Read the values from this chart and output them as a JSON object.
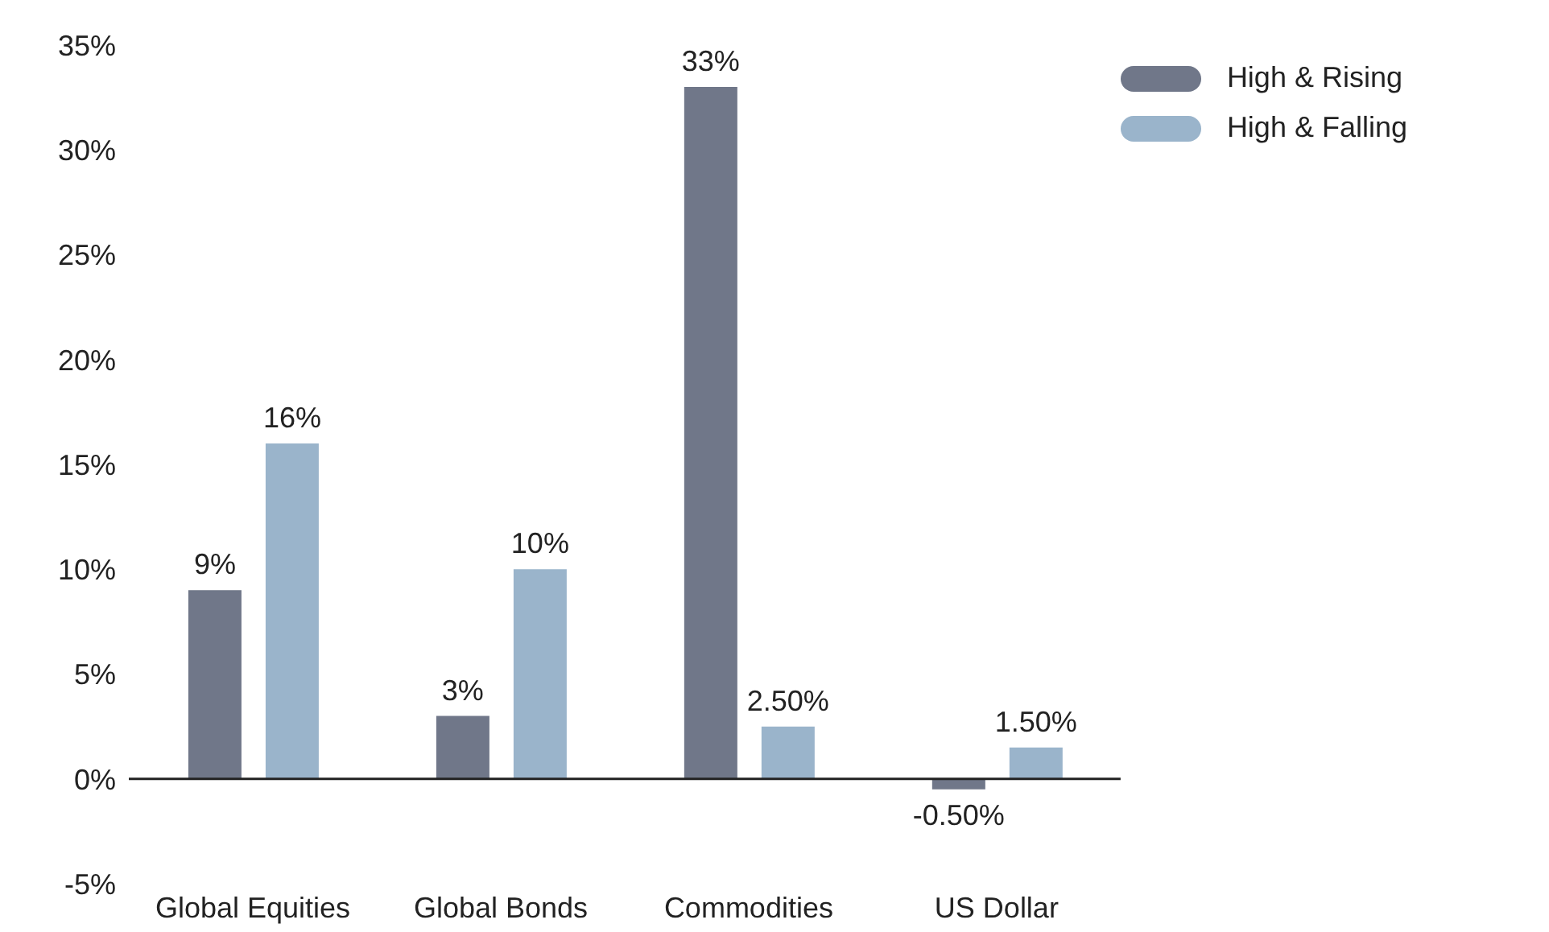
{
  "chart_data": {
    "type": "bar",
    "categories": [
      "Global Equities",
      "Global Bonds",
      "Commodities",
      "US Dollar"
    ],
    "series": [
      {
        "name": "High & Rising",
        "color": "#707789",
        "values": [
          9,
          3,
          33,
          -0.5
        ],
        "value_labels": [
          "9%",
          "3%",
          "33%",
          "-0.50%"
        ]
      },
      {
        "name": "High & Falling",
        "color": "#9ab4cb",
        "values": [
          16,
          10,
          2.5,
          1.5
        ],
        "value_labels": [
          "16%",
          "10%",
          "2.50%",
          "1.50%"
        ]
      }
    ],
    "ylim": [
      -5,
      35
    ],
    "yticks": [
      {
        "value": -5,
        "label": "-5%"
      },
      {
        "value": 0,
        "label": "0%"
      },
      {
        "value": 5,
        "label": "5%"
      },
      {
        "value": 10,
        "label": "10%"
      },
      {
        "value": 15,
        "label": "15%"
      },
      {
        "value": 20,
        "label": "20%"
      },
      {
        "value": 25,
        "label": "25%"
      },
      {
        "value": 30,
        "label": "30%"
      },
      {
        "value": 35,
        "label": "35%"
      }
    ],
    "legend": "top right"
  }
}
